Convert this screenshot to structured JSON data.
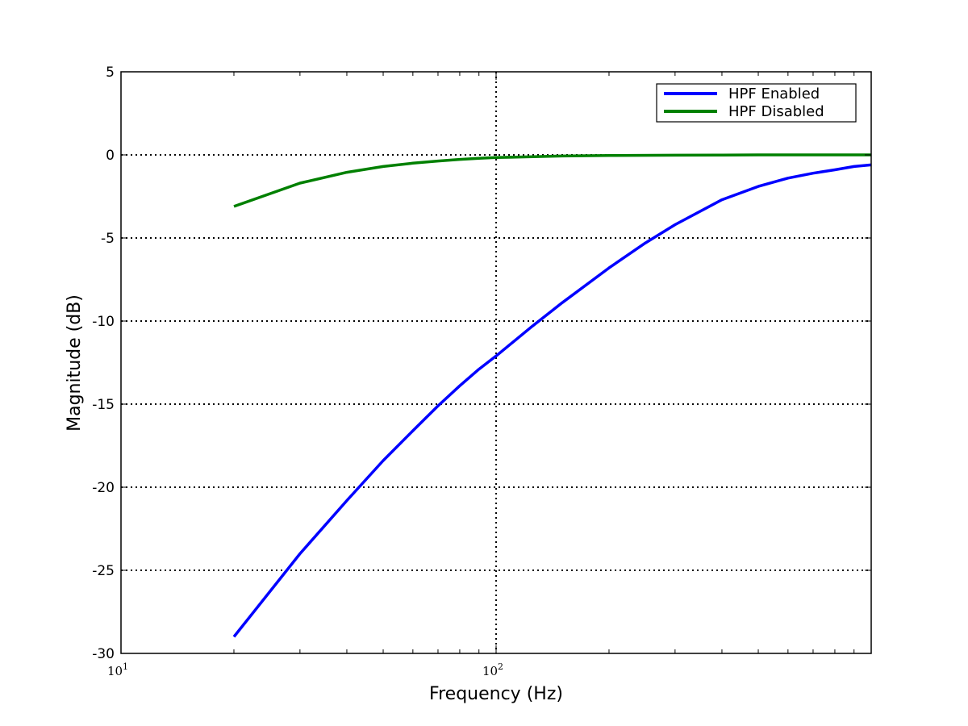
{
  "chart_data": {
    "type": "line",
    "xlabel": "Frequency (Hz)",
    "ylabel": "Magnitude (dB)",
    "xscale": "log",
    "xlim": [
      10,
      1000
    ],
    "ylim": [
      -30,
      5
    ],
    "yticks": [
      5,
      0,
      -5,
      -10,
      -15,
      -20,
      -25,
      -30
    ],
    "ytick_labels": [
      "5",
      "0",
      "-5",
      "-10",
      "-15",
      "-20",
      "-25",
      "-30"
    ],
    "xticks": [
      {
        "value": 10,
        "base": "10",
        "exp": "1"
      },
      {
        "value": 100,
        "base": "10",
        "exp": "2"
      }
    ],
    "grid": true,
    "legend_position": "top-right",
    "series": [
      {
        "name": "HPF Enabled",
        "color": "#0000ff",
        "x": [
          20,
          30,
          40,
          50,
          60,
          70,
          80,
          90,
          100,
          125,
          150,
          200,
          250,
          300,
          400,
          500,
          600,
          700,
          800,
          900,
          1000
        ],
        "y": [
          -29.0,
          -24.0,
          -20.8,
          -18.4,
          -16.6,
          -15.1,
          -13.9,
          -12.9,
          -12.1,
          -10.3,
          -8.9,
          -6.8,
          -5.3,
          -4.2,
          -2.7,
          -1.9,
          -1.4,
          -1.1,
          -0.9,
          -0.7,
          -0.6
        ]
      },
      {
        "name": "HPF Disabled",
        "color": "#008000",
        "x": [
          20,
          30,
          40,
          50,
          60,
          70,
          80,
          90,
          100,
          150,
          200,
          300,
          400,
          500,
          1000
        ],
        "y": [
          -3.1,
          -1.7,
          -1.05,
          -0.7,
          -0.5,
          -0.37,
          -0.27,
          -0.21,
          -0.16,
          -0.07,
          -0.04,
          -0.02,
          -0.01,
          0.0,
          0.0
        ]
      }
    ]
  }
}
